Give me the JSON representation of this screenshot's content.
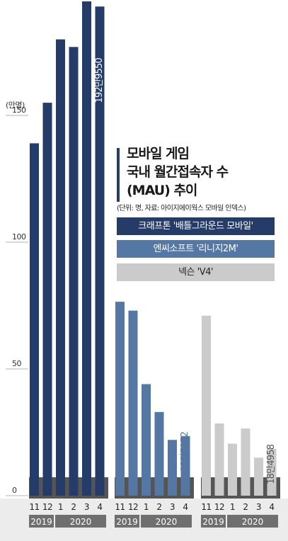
{
  "colors": {
    "series1": "#263c68",
    "series2": "#5577a3",
    "series3": "#cbcbcb",
    "axis_band": "#ececec",
    "year_label_bg": "#6f6f6f",
    "base_bar": "#555555"
  },
  "unit_label": "(만명)",
  "title": {
    "line1": "모바일 게임",
    "line2": "국내 월간접속자 수",
    "line3": "(MAU) 추이",
    "subtitle": "(단위: 명, 자료: 아이지에이웍스 모바일 인덱스)"
  },
  "chart_data": {
    "type": "bar",
    "ylabel": "(만명)",
    "ylim": [
      0,
      195
    ],
    "y_ticks": [
      "0",
      "50",
      "100",
      "150"
    ],
    "categories": [
      "11",
      "12",
      "1",
      "2",
      "3",
      "4"
    ],
    "year_groups": [
      {
        "label": "2019",
        "months": [
          "11",
          "12"
        ]
      },
      {
        "label": "2020",
        "months": [
          "1",
          "2",
          "3",
          "4"
        ]
      }
    ],
    "series": [
      {
        "name": "크래프톤 '배틀그라운드 모바일'",
        "values": [
          139,
          155,
          180,
          177,
          195,
          192.955
        ]
      },
      {
        "name": "엔씨소프트 '리니지2M'",
        "values": [
          76.5,
          73,
          44,
          33,
          22,
          23.5152
        ]
      },
      {
        "name": "넥슨 'V4'",
        "values": [
          71,
          28.5,
          20.5,
          26.5,
          15,
          18.4958
        ]
      }
    ],
    "annotations": [
      {
        "series": "크래프톤 '배틀그라운드 모바일'",
        "category": "4",
        "text": "192만9550"
      },
      {
        "series": "엔씨소프트 '리니지2M'",
        "category": "4",
        "text": "23만5152"
      },
      {
        "series": "넥슨 'V4'",
        "category": "4",
        "text": "18만4958"
      }
    ]
  }
}
